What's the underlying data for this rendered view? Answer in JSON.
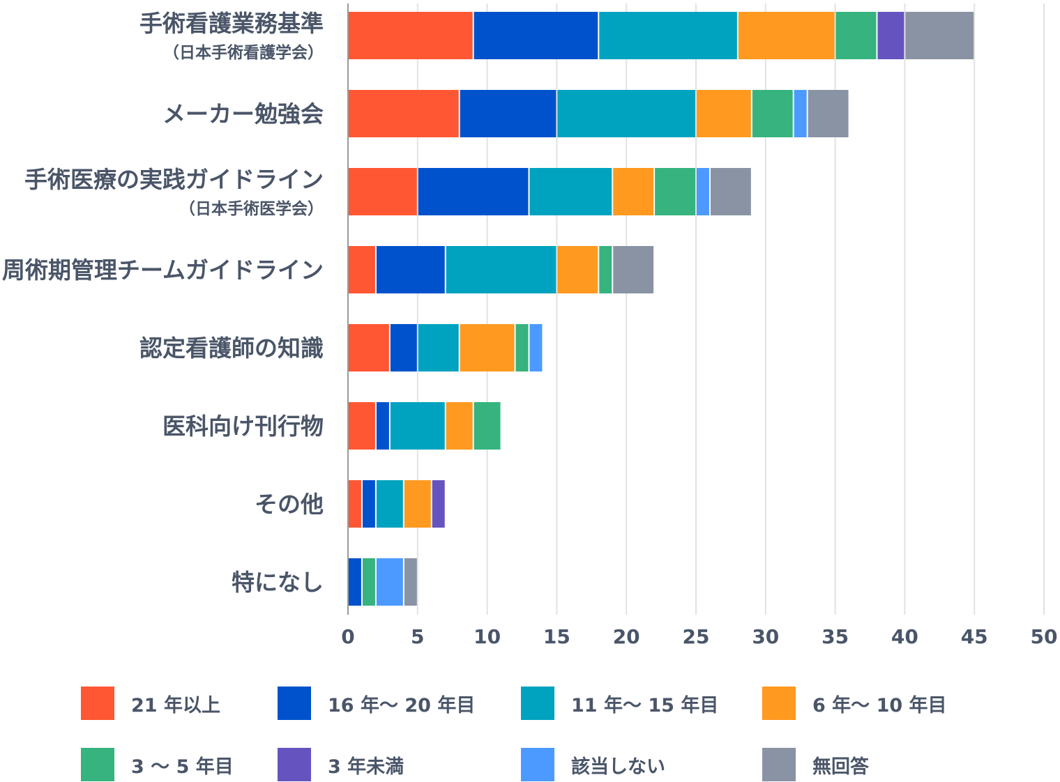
{
  "chart_data": {
    "type": "bar",
    "orientation": "horizontal",
    "stacked": true,
    "categories": [
      {
        "label": "手術看護業務基準",
        "sublabel": "（日本手術看護学会）"
      },
      {
        "label": "メーカー勉強会",
        "sublabel": ""
      },
      {
        "label": "手術医療の実践ガイドライン",
        "sublabel": "（日本手術医学会）"
      },
      {
        "label": "周術期管理チームガイドライン",
        "sublabel": ""
      },
      {
        "label": "認定看護師の知識",
        "sublabel": ""
      },
      {
        "label": "医科向け刊行物",
        "sublabel": ""
      },
      {
        "label": "その他",
        "sublabel": ""
      },
      {
        "label": "特になし",
        "sublabel": ""
      }
    ],
    "series": [
      {
        "name": "21 年以上",
        "color": "#ff5733",
        "values": [
          9,
          8,
          5,
          2,
          3,
          2,
          1,
          0
        ]
      },
      {
        "name": "16 年～ 20 年目",
        "color": "#0052cc",
        "values": [
          9,
          7,
          8,
          5,
          2,
          1,
          1,
          1
        ]
      },
      {
        "name": "11 年～ 15 年目",
        "color": "#00a3bf",
        "values": [
          10,
          10,
          6,
          8,
          3,
          4,
          2,
          0
        ]
      },
      {
        "name": "6 年～ 10 年目",
        "color": "#ff991f",
        "values": [
          7,
          4,
          3,
          3,
          4,
          2,
          2,
          0
        ]
      },
      {
        "name": "3 ～ 5 年目",
        "color": "#36b37e",
        "values": [
          3,
          3,
          3,
          1,
          1,
          2,
          0,
          1
        ]
      },
      {
        "name": "3 年未満",
        "color": "#6554c0",
        "values": [
          2,
          0,
          0,
          0,
          0,
          0,
          1,
          0
        ]
      },
      {
        "name": "該当しない",
        "color": "#4c9aff",
        "values": [
          0,
          1,
          1,
          0,
          1,
          0,
          0,
          2
        ]
      },
      {
        "name": "無回答",
        "color": "#8993a4",
        "values": [
          5,
          3,
          3,
          3,
          0,
          0,
          0,
          1
        ]
      }
    ],
    "xlim": [
      0,
      50
    ],
    "xticks": [
      "0",
      "5",
      "10",
      "15",
      "20",
      "25",
      "30",
      "35",
      "40",
      "45",
      "50"
    ],
    "grid": true,
    "legend_position": "bottom"
  }
}
